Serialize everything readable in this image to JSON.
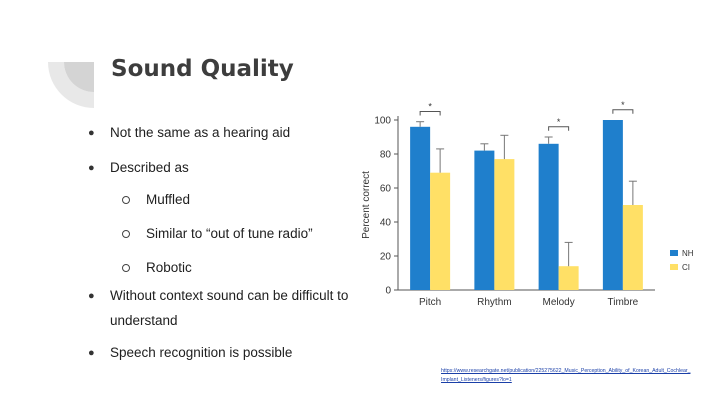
{
  "slide": {
    "title": "Sound Quality",
    "bullets": [
      {
        "text": "Not the same as a hearing aid"
      },
      {
        "text": "Described as"
      },
      {
        "text": "Muffled",
        "sub": true
      },
      {
        "text": "Similar to “out of tune radio”",
        "sub": true
      },
      {
        "text": "Robotic",
        "sub": true
      },
      {
        "text": "Without context sound can be difficult to"
      },
      {
        "text": "understand",
        "cont": true
      },
      {
        "text": "Speech recognition is possible"
      }
    ],
    "citation": "https://www.researchgate.net/publication/225275622_Music_Perception_Ability_of_Korean_Adult_Cochlear_Implant_Listeners/figures?lo=1"
  },
  "chart_data": {
    "type": "bar",
    "categories": [
      "Pitch",
      "Rhythm",
      "Melody",
      "Timbre"
    ],
    "series": [
      {
        "name": "NH",
        "values": [
          96,
          82,
          86,
          100
        ],
        "errors": [
          3,
          4,
          4,
          0
        ],
        "color": "#1f7fcc"
      },
      {
        "name": "CI",
        "values": [
          69,
          77,
          14,
          50
        ],
        "errors": [
          14,
          14,
          14,
          14
        ],
        "color": "#ffe066"
      }
    ],
    "ylabel": "Percent correct",
    "yticks": [
      0,
      20,
      40,
      60,
      80,
      100
    ],
    "ylim": [
      0,
      100
    ],
    "significance": [
      "*",
      "",
      "*",
      "*"
    ],
    "legend": "right"
  }
}
